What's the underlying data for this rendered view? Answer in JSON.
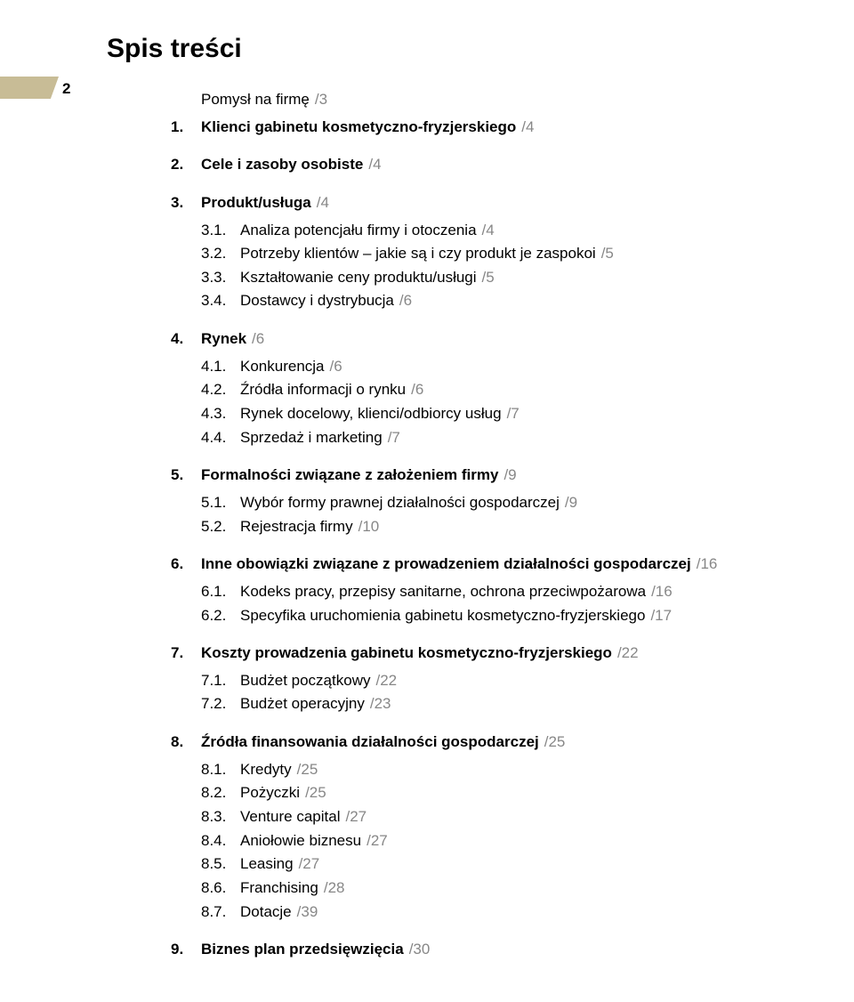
{
  "heading": "Spis treści",
  "page_number": "2",
  "colors": {
    "marker": "#c8bc96",
    "pageref": "#878787",
    "text": "#000000",
    "background": "#ffffff"
  },
  "typography": {
    "heading_fontsize": 30,
    "body_fontsize": 17,
    "font_family": "Helvetica"
  },
  "intro": {
    "title": "Pomysł na firmę",
    "page": "/3"
  },
  "items": [
    {
      "n": "1.",
      "title": "Klienci gabinetu kosmetyczno-fryzjerskiego",
      "page": "/4",
      "subs": []
    },
    {
      "n": "2.",
      "title": "Cele i zasoby osobiste",
      "page": "/4",
      "subs": []
    },
    {
      "n": "3.",
      "title": "Produkt/usługa",
      "page": "/4",
      "subs": [
        {
          "n": "3.1.",
          "title": "Analiza potencjału firmy i otoczenia",
          "page": "/4"
        },
        {
          "n": "3.2.",
          "title": "Potrzeby klientów – jakie są i czy produkt je zaspokoi",
          "page": "/5"
        },
        {
          "n": "3.3.",
          "title": "Kształtowanie ceny produktu/usługi",
          "page": "/5"
        },
        {
          "n": "3.4.",
          "title": "Dostawcy i dystrybucja",
          "page": "/6"
        }
      ]
    },
    {
      "n": "4.",
      "title": "Rynek",
      "page": "/6",
      "subs": [
        {
          "n": "4.1.",
          "title": "Konkurencja",
          "page": "/6"
        },
        {
          "n": "4.2.",
          "title": "Źródła informacji o rynku",
          "page": "/6"
        },
        {
          "n": "4.3.",
          "title": "Rynek docelowy, klienci/odbiorcy usług",
          "page": "/7"
        },
        {
          "n": "4.4.",
          "title": "Sprzedaż i marketing",
          "page": "/7"
        }
      ]
    },
    {
      "n": "5.",
      "title": "Formalności związane z założeniem firmy",
      "page": "/9",
      "subs": [
        {
          "n": "5.1.",
          "title": "Wybór formy prawnej działalności gospodarczej",
          "page": "/9"
        },
        {
          "n": "5.2.",
          "title": "Rejestracja firmy",
          "page": "/10"
        }
      ]
    },
    {
      "n": "6.",
      "title": "Inne obowiązki związane z prowadzeniem działalności gospodarczej",
      "page": "/16",
      "subs": [
        {
          "n": "6.1.",
          "title": "Kodeks pracy, przepisy sanitarne, ochrona przeciwpożarowa",
          "page": "/16"
        },
        {
          "n": "6.2.",
          "title": "Specyfika uruchomienia gabinetu kosmetyczno-fryzjerskiego",
          "page": "/17"
        }
      ]
    },
    {
      "n": "7.",
      "title": "Koszty prowadzenia gabinetu kosmetyczno-fryzjerskiego",
      "page": "/22",
      "subs": [
        {
          "n": "7.1.",
          "title": "Budżet początkowy",
          "page": "/22"
        },
        {
          "n": "7.2.",
          "title": "Budżet operacyjny",
          "page": "/23"
        }
      ]
    },
    {
      "n": "8.",
      "title": "Źródła finansowania działalności gospodarczej",
      "page": "/25",
      "subs": [
        {
          "n": "8.1.",
          "title": "Kredyty",
          "page": "/25"
        },
        {
          "n": "8.2.",
          "title": "Pożyczki",
          "page": "/25"
        },
        {
          "n": "8.3.",
          "title": "Venture capital",
          "page": "/27"
        },
        {
          "n": "8.4.",
          "title": "Aniołowie biznesu",
          "page": "/27"
        },
        {
          "n": "8.5.",
          "title": "Leasing",
          "page": "/27"
        },
        {
          "n": "8.6.",
          "title": "Franchising",
          "page": "/28"
        },
        {
          "n": "8.7.",
          "title": "Dotacje",
          "page": "/39"
        }
      ]
    },
    {
      "n": "9.",
      "title": "Biznes plan przedsięwzięcia",
      "page": "/30",
      "subs": []
    }
  ]
}
